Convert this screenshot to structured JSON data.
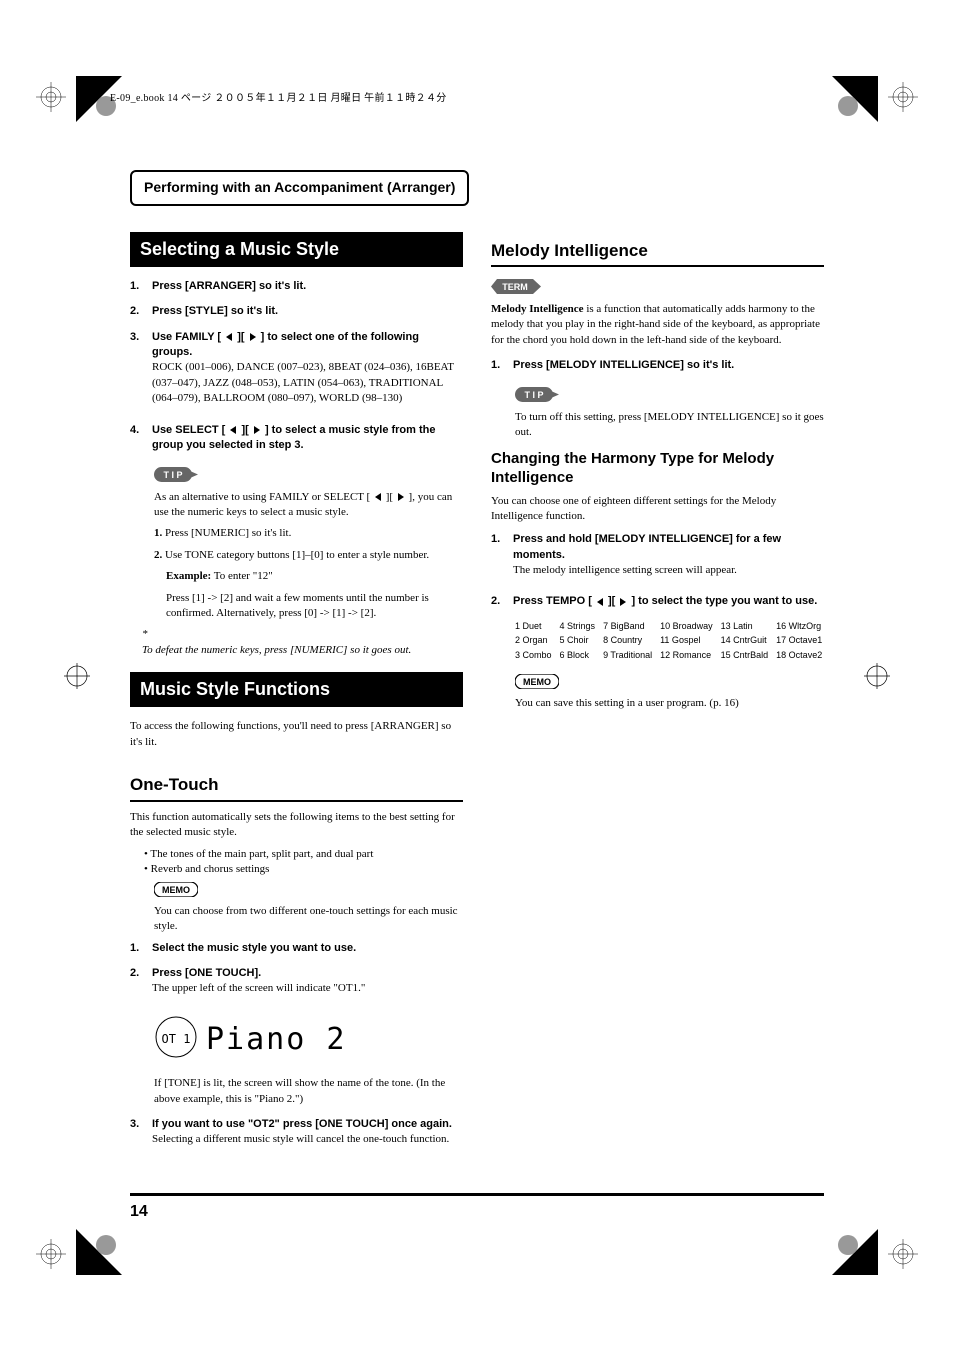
{
  "header": "E-09_e.book 14 ページ ２００５年１１月２１日 月曜日 午前１１時２４分",
  "chapter_title": "Performing with an Accompaniment (Arranger)",
  "page_number": "14",
  "left": {
    "section1": {
      "title": "Selecting a Music Style",
      "steps": [
        {
          "num": "1.",
          "title": "Press [ARRANGER] so it's lit."
        },
        {
          "num": "2.",
          "title": "Press [STYLE] so it's lit."
        },
        {
          "num": "3.",
          "title_pre": "Use FAMILY [",
          "title_post": "] to select one of the following groups.",
          "body": "ROCK (001–006), DANCE (007–023), 8BEAT (024–036), 16BEAT (037–047), JAZZ (048–053), LATIN (054–063), TRADITIONAL (064–079), BALLROOM (080–097), WORLD (98–130)"
        },
        {
          "num": "4.",
          "title_pre": "Use SELECT [",
          "title_post": "] to select a music style from the group you selected in step 3.",
          "tip_pre": "As an alternative to using FAMILY or SELECT [",
          "tip_post": "], you can use the numeric keys to select a music style.",
          "sub1_num": "1.",
          "sub1": "Press [NUMERIC] so it's lit.",
          "sub2_num": "2.",
          "sub2": "Use TONE category buttons [1]–[0] to enter a style number.",
          "sub2_ex_label": "Example:",
          "sub2_ex": " To enter \"12\"",
          "sub2_body": "Press [1] -> [2] and wait a few moments until the number is confirmed. Alternatively, press [0] -> [1] -> [2]."
        }
      ],
      "footnote": "To defeat the numeric keys, press [NUMERIC] so it goes out."
    },
    "section2": {
      "title": "Music Style Functions",
      "intro": "To access the following functions, you'll need to press [ARRANGER] so it's lit.",
      "sub1": {
        "title": "One-Touch",
        "intro": "This function automatically sets the following items to the best setting for the selected music style.",
        "bullet1": "The tones of the main part, split part, and dual part",
        "bullet2": "Reverb and chorus settings",
        "memo": "You can choose from two different one-touch settings for each music style.",
        "step1_num": "1.",
        "step1": "Select the music style you want to use.",
        "step2_num": "2.",
        "step2": "Press [ONE TOUCH].",
        "step2_body": "The upper left of the screen will indicate \"OT1.\"",
        "lcd_ot": "OT 1",
        "lcd_text": "Piano 2",
        "step2_note": "If [TONE] is lit, the screen will show the name of the tone. (In the above example, this is \"Piano 2.\")",
        "step3_num": "3.",
        "step3": "If you want to use \"OT2\" press [ONE TOUCH] once again.",
        "step3_body": "Selecting a different music style will cancel the one-touch function."
      }
    }
  },
  "right": {
    "mi": {
      "title": "Melody Intelligence",
      "term": "Melody Intelligence",
      "term_body": " is a function that automatically adds harmony to the melody that you play in the right-hand side of the keyboard, as appropriate for the chord you hold down in the left-hand side of the keyboard.",
      "step1_num": "1.",
      "step1": "Press [MELODY INTELLIGENCE] so it's lit.",
      "tip": "To turn off this setting, press [MELODY INTELLIGENCE] so it goes out."
    },
    "harmony": {
      "title": "Changing the Harmony Type for Melody Intelligence",
      "intro": "You can choose one of eighteen different settings for the Melody Intelligence function.",
      "step1_num": "1.",
      "step1": "Press and hold [MELODY INTELLIGENCE] for a few moments.",
      "step1_body": "The melody intelligence setting screen will appear.",
      "step2_num": "2.",
      "step2_pre": "Press TEMPO [",
      "step2_post": "] to select the type you want to use.",
      "table": [
        [
          "1 Duet",
          "4 Strings",
          "7 BigBand",
          "10 Broadway",
          "13 Latin",
          "16 WltzOrg"
        ],
        [
          "2 Organ",
          "5 Choir",
          "8 Country",
          "11 Gospel",
          "14 CntrGuit",
          "17 Octave1"
        ],
        [
          "3 Combo",
          "6 Block",
          "9 Traditional",
          "12 Romance",
          "15 CntrBald",
          "18 Octave2"
        ]
      ],
      "memo": "You can save this setting in a user program. (p. 16)"
    }
  }
}
